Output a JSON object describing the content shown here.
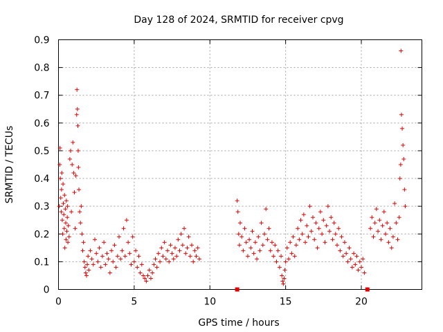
{
  "chart_data": {
    "type": "scatter",
    "title": "Day 128 of 2024, SRMTID for receiver cpvg",
    "xlabel": "GPS time / hours",
    "ylabel": "SRMTID / TECUs",
    "xlim": [
      0,
      24
    ],
    "ylim": [
      0,
      0.9
    ],
    "xticks": [
      0,
      5,
      10,
      15,
      20
    ],
    "yticks": [
      0,
      0.1,
      0.2,
      0.3,
      0.4,
      0.5,
      0.6,
      0.7,
      0.8,
      0.9
    ],
    "xtick_labels": [
      "0",
      "5",
      "10",
      "15",
      "20"
    ],
    "ytick_labels": [
      "0",
      "0.1",
      "0.2",
      "0.3",
      "0.4",
      "0.5",
      "0.6",
      "0.7",
      "0.8",
      "0.9"
    ],
    "grid": true,
    "marker": "+",
    "color": "#e00000",
    "series": [
      {
        "name": "SRMTID",
        "points": [
          [
            0.05,
            0.3
          ],
          [
            0.08,
            0.45
          ],
          [
            0.1,
            0.51
          ],
          [
            0.12,
            0.4
          ],
          [
            0.15,
            0.33
          ],
          [
            0.18,
            0.28
          ],
          [
            0.2,
            0.36
          ],
          [
            0.22,
            0.42
          ],
          [
            0.25,
            0.25
          ],
          [
            0.28,
            0.2
          ],
          [
            0.3,
            0.38
          ],
          [
            0.32,
            0.31
          ],
          [
            0.35,
            0.27
          ],
          [
            0.38,
            0.22
          ],
          [
            0.4,
            0.34
          ],
          [
            0.42,
            0.15
          ],
          [
            0.45,
            0.29
          ],
          [
            0.48,
            0.24
          ],
          [
            0.5,
            0.18
          ],
          [
            0.52,
            0.32
          ],
          [
            0.55,
            0.21
          ],
          [
            0.58,
            0.26
          ],
          [
            0.6,
            0.3
          ],
          [
            0.62,
            0.17
          ],
          [
            0.65,
            0.23
          ],
          [
            0.7,
            0.19
          ],
          [
            0.75,
            0.47
          ],
          [
            0.8,
            0.5
          ],
          [
            0.85,
            0.28
          ],
          [
            0.9,
            0.45
          ],
          [
            0.95,
            0.53
          ],
          [
            1.0,
            0.42
          ],
          [
            1.05,
            0.35
          ],
          [
            1.1,
            0.22
          ],
          [
            1.15,
            0.41
          ],
          [
            1.2,
            0.63
          ],
          [
            1.22,
            0.72
          ],
          [
            1.25,
            0.65
          ],
          [
            1.28,
            0.59
          ],
          [
            1.3,
            0.5
          ],
          [
            1.32,
            0.44
          ],
          [
            1.35,
            0.36
          ],
          [
            1.4,
            0.28
          ],
          [
            1.45,
            0.24
          ],
          [
            1.5,
            0.3
          ],
          [
            1.55,
            0.2
          ],
          [
            1.6,
            0.14
          ],
          [
            1.65,
            0.17
          ],
          [
            1.7,
            0.1
          ],
          [
            1.75,
            0.08
          ],
          [
            1.8,
            0.06
          ],
          [
            1.85,
            0.05
          ],
          [
            1.9,
            0.09
          ],
          [
            1.95,
            0.12
          ],
          [
            2.0,
            0.07
          ],
          [
            2.1,
            0.14
          ],
          [
            2.2,
            0.11
          ],
          [
            2.3,
            0.09
          ],
          [
            2.4,
            0.18
          ],
          [
            2.5,
            0.13
          ],
          [
            2.6,
            0.1
          ],
          [
            2.7,
            0.15
          ],
          [
            2.8,
            0.08
          ],
          [
            2.9,
            0.12
          ],
          [
            3.0,
            0.17
          ],
          [
            3.1,
            0.09
          ],
          [
            3.2,
            0.13
          ],
          [
            3.3,
            0.11
          ],
          [
            3.4,
            0.06
          ],
          [
            3.5,
            0.14
          ],
          [
            3.6,
            0.1
          ],
          [
            3.7,
            0.16
          ],
          [
            3.8,
            0.08
          ],
          [
            3.9,
            0.12
          ],
          [
            4.0,
            0.19
          ],
          [
            4.1,
            0.11
          ],
          [
            4.2,
            0.14
          ],
          [
            4.3,
            0.22
          ],
          [
            4.4,
            0.12
          ],
          [
            4.5,
            0.25
          ],
          [
            4.6,
            0.17
          ],
          [
            4.7,
            0.13
          ],
          [
            4.8,
            0.09
          ],
          [
            4.9,
            0.19
          ],
          [
            5.0,
            0.1
          ],
          [
            5.1,
            0.14
          ],
          [
            5.2,
            0.08
          ],
          [
            5.3,
            0.12
          ],
          [
            5.4,
            0.06
          ],
          [
            5.5,
            0.09
          ],
          [
            5.6,
            0.05
          ],
          [
            5.7,
            0.04
          ],
          [
            5.8,
            0.03
          ],
          [
            5.9,
            0.05
          ],
          [
            6.0,
            0.07
          ],
          [
            6.1,
            0.04
          ],
          [
            6.2,
            0.06
          ],
          [
            6.3,
            0.09
          ],
          [
            6.4,
            0.11
          ],
          [
            6.5,
            0.08
          ],
          [
            6.6,
            0.13
          ],
          [
            6.7,
            0.1
          ],
          [
            6.8,
            0.15
          ],
          [
            6.9,
            0.12
          ],
          [
            7.0,
            0.17
          ],
          [
            7.1,
            0.11
          ],
          [
            7.2,
            0.14
          ],
          [
            7.3,
            0.1
          ],
          [
            7.4,
            0.16
          ],
          [
            7.5,
            0.13
          ],
          [
            7.6,
            0.11
          ],
          [
            7.7,
            0.15
          ],
          [
            7.8,
            0.12
          ],
          [
            7.9,
            0.18
          ],
          [
            8.0,
            0.14
          ],
          [
            8.1,
            0.2
          ],
          [
            8.2,
            0.16
          ],
          [
            8.3,
            0.22
          ],
          [
            8.4,
            0.13
          ],
          [
            8.5,
            0.15
          ],
          [
            8.6,
            0.19
          ],
          [
            8.7,
            0.12
          ],
          [
            8.8,
            0.16
          ],
          [
            8.9,
            0.1
          ],
          [
            9.0,
            0.14
          ],
          [
            9.1,
            0.12
          ],
          [
            9.2,
            0.15
          ],
          [
            9.3,
            0.11
          ],
          [
            11.8,
            0.32
          ],
          [
            11.85,
            0.28
          ],
          [
            11.9,
            0.2
          ],
          [
            11.95,
            0.16
          ],
          [
            12.0,
            0.24
          ],
          [
            12.1,
            0.19
          ],
          [
            12.2,
            0.14
          ],
          [
            12.3,
            0.22
          ],
          [
            12.4,
            0.17
          ],
          [
            12.5,
            0.12
          ],
          [
            12.6,
            0.18
          ],
          [
            12.7,
            0.15
          ],
          [
            12.8,
            0.21
          ],
          [
            12.9,
            0.13
          ],
          [
            13.0,
            0.17
          ],
          [
            13.1,
            0.11
          ],
          [
            13.2,
            0.19
          ],
          [
            13.3,
            0.14
          ],
          [
            13.4,
            0.24
          ],
          [
            13.5,
            0.16
          ],
          [
            13.6,
            0.2
          ],
          [
            13.7,
            0.29
          ],
          [
            13.8,
            0.18
          ],
          [
            13.9,
            0.22
          ],
          [
            14.0,
            0.14
          ],
          [
            14.1,
            0.17
          ],
          [
            14.2,
            0.12
          ],
          [
            14.3,
            0.16
          ],
          [
            14.4,
            0.1
          ],
          [
            14.5,
            0.14
          ],
          [
            14.6,
            0.08
          ],
          [
            14.7,
            0.12
          ],
          [
            14.75,
            0.05
          ],
          [
            14.8,
            0.03
          ],
          [
            14.85,
            0.02
          ],
          [
            14.9,
            0.04
          ],
          [
            14.95,
            0.07
          ],
          [
            15.0,
            0.1
          ],
          [
            15.1,
            0.15
          ],
          [
            15.2,
            0.11
          ],
          [
            15.3,
            0.17
          ],
          [
            15.4,
            0.13
          ],
          [
            15.5,
            0.19
          ],
          [
            15.6,
            0.12
          ],
          [
            15.7,
            0.16
          ],
          [
            15.8,
            0.22
          ],
          [
            15.9,
            0.18
          ],
          [
            16.0,
            0.25
          ],
          [
            16.1,
            0.2
          ],
          [
            16.2,
            0.27
          ],
          [
            16.3,
            0.17
          ],
          [
            16.4,
            0.23
          ],
          [
            16.5,
            0.19
          ],
          [
            16.6,
            0.3
          ],
          [
            16.7,
            0.21
          ],
          [
            16.8,
            0.26
          ],
          [
            16.9,
            0.18
          ],
          [
            17.0,
            0.24
          ],
          [
            17.1,
            0.15
          ],
          [
            17.2,
            0.22
          ],
          [
            17.3,
            0.28
          ],
          [
            17.4,
            0.2
          ],
          [
            17.5,
            0.25
          ],
          [
            17.6,
            0.17
          ],
          [
            17.7,
            0.23
          ],
          [
            17.8,
            0.3
          ],
          [
            17.9,
            0.21
          ],
          [
            18.0,
            0.26
          ],
          [
            18.1,
            0.18
          ],
          [
            18.2,
            0.24
          ],
          [
            18.3,
            0.2
          ],
          [
            18.4,
            0.16
          ],
          [
            18.5,
            0.22
          ],
          [
            18.6,
            0.14
          ],
          [
            18.7,
            0.19
          ],
          [
            18.8,
            0.12
          ],
          [
            18.9,
            0.17
          ],
          [
            19.0,
            0.13
          ],
          [
            19.1,
            0.1
          ],
          [
            19.2,
            0.15
          ],
          [
            19.3,
            0.11
          ],
          [
            19.4,
            0.08
          ],
          [
            19.5,
            0.13
          ],
          [
            19.6,
            0.09
          ],
          [
            19.7,
            0.12
          ],
          [
            19.8,
            0.07
          ],
          [
            19.9,
            0.1
          ],
          [
            20.0,
            0.08
          ],
          [
            20.1,
            0.11
          ],
          [
            20.2,
            0.06
          ],
          [
            20.6,
            0.22
          ],
          [
            20.7,
            0.26
          ],
          [
            20.8,
            0.19
          ],
          [
            20.9,
            0.24
          ],
          [
            21.0,
            0.29
          ],
          [
            21.1,
            0.21
          ],
          [
            21.2,
            0.25
          ],
          [
            21.3,
            0.18
          ],
          [
            21.4,
            0.23
          ],
          [
            21.5,
            0.28
          ],
          [
            21.6,
            0.2
          ],
          [
            21.7,
            0.24
          ],
          [
            21.8,
            0.17
          ],
          [
            21.9,
            0.22
          ],
          [
            22.0,
            0.15
          ],
          [
            22.1,
            0.19
          ],
          [
            22.2,
            0.31
          ],
          [
            22.3,
            0.24
          ],
          [
            22.4,
            0.18
          ],
          [
            22.5,
            0.26
          ],
          [
            22.55,
            0.4
          ],
          [
            22.6,
            0.45
          ],
          [
            22.62,
            0.86
          ],
          [
            22.65,
            0.63
          ],
          [
            22.7,
            0.58
          ],
          [
            22.75,
            0.52
          ],
          [
            22.8,
            0.47
          ],
          [
            22.85,
            0.36
          ],
          [
            22.9,
            0.3
          ]
        ]
      },
      {
        "name": "gap markers",
        "points": [
          [
            11.8,
            0.0
          ],
          [
            20.4,
            0.0
          ]
        ]
      }
    ]
  }
}
